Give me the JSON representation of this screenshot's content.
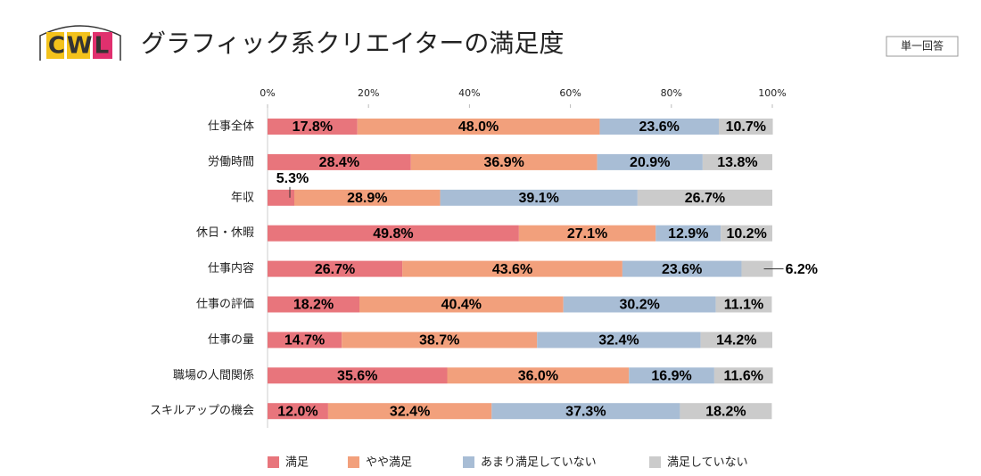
{
  "chart_data": {
    "type": "stacked-bar-horizontal",
    "logo": "CWL",
    "title": "グラフィック系クリエイターの満足度",
    "annotation": "単一回答",
    "categories": [
      "仕事全体",
      "労働時間",
      "年収",
      "休日・休暇",
      "仕事内容",
      "仕事の評価",
      "仕事の量",
      "職場の人間関係",
      "スキルアップの機会"
    ],
    "series": [
      {
        "name": "満足",
        "color": "#e8757c",
        "values": [
          17.8,
          28.4,
          5.3,
          49.8,
          26.7,
          18.2,
          14.7,
          35.6,
          12.0
        ],
        "value_labels": [
          "17.8%",
          "28.4%",
          "5.3%",
          "49.8%",
          "26.7%",
          "18.2%",
          "14.7%",
          "35.6%",
          "12.0%"
        ]
      },
      {
        "name": "やや満足",
        "color": "#f2a07c",
        "values": [
          48.0,
          36.9,
          28.9,
          27.1,
          43.6,
          40.4,
          38.7,
          36.0,
          32.4
        ],
        "value_labels": [
          "48.0%",
          "36.9%",
          "28.9%",
          "27.1%",
          "43.6%",
          "40.4%",
          "38.7%",
          "36.0%",
          "32.4%"
        ]
      },
      {
        "name": "あまり満足していない",
        "color": "#a8bdd5",
        "values": [
          23.6,
          20.9,
          39.1,
          12.9,
          23.6,
          30.2,
          32.4,
          16.9,
          37.3
        ],
        "value_labels": [
          "23.6%",
          "20.9%",
          "39.1%",
          "12.9%",
          "23.6%",
          "30.2%",
          "32.4%",
          "16.9%",
          "37.3%"
        ]
      },
      {
        "name": "満足していない",
        "color": "#cbcbcb",
        "values": [
          10.7,
          13.8,
          26.7,
          10.2,
          6.2,
          11.1,
          14.2,
          11.6,
          18.2
        ],
        "value_labels": [
          "10.7%",
          "13.8%",
          "26.7%",
          "10.2%",
          "6.2%",
          "11.1%",
          "14.2%",
          "11.6%",
          "18.2%"
        ]
      }
    ],
    "xlim": [
      0,
      100
    ],
    "xticks": [
      {
        "value": 0,
        "label": "0%"
      },
      {
        "value": 20,
        "label": "20%"
      },
      {
        "value": 40,
        "label": "40%"
      },
      {
        "value": 60,
        "label": "60%"
      },
      {
        "value": 80,
        "label": "80%"
      },
      {
        "value": 100,
        "label": "100%"
      }
    ],
    "legend": "bottom"
  }
}
